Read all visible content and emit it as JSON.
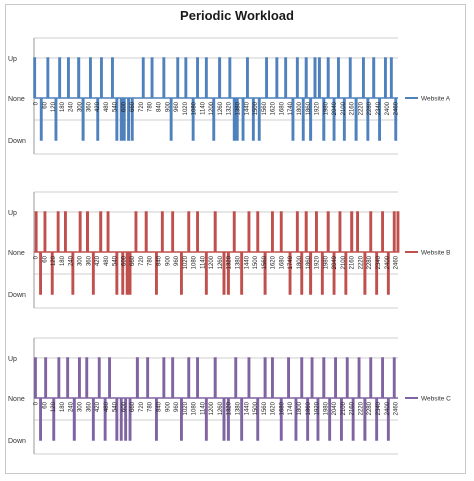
{
  "chart_data": {
    "type": "line",
    "title": "Periodic Workload",
    "y_levels": {
      "1": "Up",
      "0": "None",
      "-1": "Down"
    },
    "ylim": [
      -1,
      1
    ],
    "xlim": [
      0,
      2480
    ],
    "x_tick_labels": [
      "0",
      "60",
      "120",
      "180",
      "240",
      "300",
      "360",
      "420",
      "480",
      "540",
      "600",
      "660",
      "720",
      "780",
      "840",
      "900",
      "960",
      "1020",
      "1080",
      "1140",
      "1200",
      "1260",
      "1320",
      "1380",
      "1440",
      "1500",
      "1560",
      "1620",
      "1680",
      "1740",
      "1800",
      "1860",
      "1920",
      "1980",
      "2040",
      "2100",
      "2160",
      "2220",
      "2280",
      "2340",
      "2400",
      "2460"
    ],
    "grid": true,
    "legend_position": "right",
    "panels": [
      {
        "series_name": "Website A",
        "color": "#4f81bd",
        "events": [
          [
            0,
            1
          ],
          [
            45,
            -1
          ],
          [
            90,
            1
          ],
          [
            145,
            -1
          ],
          [
            170,
            1
          ],
          [
            230,
            1
          ],
          [
            300,
            1
          ],
          [
            330,
            -1
          ],
          [
            380,
            1
          ],
          [
            430,
            -1
          ],
          [
            455,
            1
          ],
          [
            530,
            1
          ],
          [
            560,
            -1
          ],
          [
            590,
            -1
          ],
          [
            610,
            -1
          ],
          [
            640,
            -1
          ],
          [
            665,
            -1
          ],
          [
            740,
            1
          ],
          [
            800,
            1
          ],
          [
            880,
            1
          ],
          [
            930,
            -1
          ],
          [
            975,
            1
          ],
          [
            1030,
            1
          ],
          [
            1080,
            -1
          ],
          [
            1110,
            1
          ],
          [
            1170,
            1
          ],
          [
            1220,
            -1
          ],
          [
            1260,
            1
          ],
          [
            1330,
            1
          ],
          [
            1360,
            -1
          ],
          [
            1380,
            -1
          ],
          [
            1420,
            -1
          ],
          [
            1450,
            1
          ],
          [
            1490,
            -1
          ],
          [
            1530,
            -1
          ],
          [
            1580,
            1
          ],
          [
            1650,
            1
          ],
          [
            1710,
            1
          ],
          [
            1760,
            -1
          ],
          [
            1790,
            1
          ],
          [
            1830,
            -1
          ],
          [
            1850,
            1
          ],
          [
            1880,
            -1
          ],
          [
            1910,
            1
          ],
          [
            1940,
            1
          ],
          [
            1970,
            -1
          ],
          [
            2000,
            1
          ],
          [
            2040,
            -1
          ],
          [
            2070,
            1
          ],
          [
            2110,
            -1
          ],
          [
            2150,
            1
          ],
          [
            2190,
            -1
          ],
          [
            2240,
            1
          ],
          [
            2270,
            -1
          ],
          [
            2310,
            1
          ],
          [
            2350,
            -1
          ],
          [
            2390,
            1
          ],
          [
            2430,
            1
          ],
          [
            2460,
            -1
          ]
        ]
      },
      {
        "series_name": "Website B",
        "color": "#c0504d",
        "events": [
          [
            10,
            1
          ],
          [
            40,
            -1
          ],
          [
            70,
            1
          ],
          [
            120,
            -1
          ],
          [
            160,
            1
          ],
          [
            210,
            1
          ],
          [
            260,
            -1
          ],
          [
            310,
            1
          ],
          [
            360,
            1
          ],
          [
            400,
            -1
          ],
          [
            450,
            1
          ],
          [
            500,
            1
          ],
          [
            560,
            -1
          ],
          [
            600,
            -1
          ],
          [
            630,
            -1
          ],
          [
            650,
            -1
          ],
          [
            690,
            1
          ],
          [
            760,
            1
          ],
          [
            830,
            -1
          ],
          [
            870,
            1
          ],
          [
            940,
            1
          ],
          [
            1000,
            -1
          ],
          [
            1050,
            1
          ],
          [
            1110,
            1
          ],
          [
            1170,
            -1
          ],
          [
            1230,
            1
          ],
          [
            1290,
            -1
          ],
          [
            1320,
            -1
          ],
          [
            1360,
            1
          ],
          [
            1410,
            -1
          ],
          [
            1460,
            1
          ],
          [
            1520,
            1
          ],
          [
            1570,
            -1
          ],
          [
            1620,
            1
          ],
          [
            1680,
            1
          ],
          [
            1740,
            -1
          ],
          [
            1790,
            1
          ],
          [
            1820,
            -1
          ],
          [
            1850,
            1
          ],
          [
            1880,
            -1
          ],
          [
            1920,
            1
          ],
          [
            1960,
            -1
          ],
          [
            2000,
            1
          ],
          [
            2040,
            -1
          ],
          [
            2080,
            1
          ],
          [
            2120,
            -1
          ],
          [
            2160,
            1
          ],
          [
            2200,
            1
          ],
          [
            2250,
            -1
          ],
          [
            2290,
            1
          ],
          [
            2330,
            -1
          ],
          [
            2370,
            1
          ],
          [
            2410,
            -1
          ],
          [
            2450,
            1
          ],
          [
            2475,
            1
          ]
        ]
      },
      {
        "series_name": "Website C",
        "color": "#8064a2",
        "events": [
          [
            5,
            1
          ],
          [
            40,
            -1
          ],
          [
            75,
            1
          ],
          [
            130,
            -1
          ],
          [
            165,
            1
          ],
          [
            225,
            1
          ],
          [
            270,
            -1
          ],
          [
            305,
            1
          ],
          [
            355,
            1
          ],
          [
            400,
            -1
          ],
          [
            440,
            1
          ],
          [
            480,
            -1
          ],
          [
            510,
            1
          ],
          [
            560,
            -1
          ],
          [
            590,
            -1
          ],
          [
            620,
            -1
          ],
          [
            650,
            -1
          ],
          [
            700,
            1
          ],
          [
            770,
            1
          ],
          [
            830,
            -1
          ],
          [
            880,
            1
          ],
          [
            940,
            1
          ],
          [
            1000,
            -1
          ],
          [
            1050,
            1
          ],
          [
            1110,
            1
          ],
          [
            1170,
            -1
          ],
          [
            1230,
            1
          ],
          [
            1290,
            -1
          ],
          [
            1320,
            -1
          ],
          [
            1370,
            1
          ],
          [
            1410,
            -1
          ],
          [
            1460,
            1
          ],
          [
            1520,
            -1
          ],
          [
            1570,
            1
          ],
          [
            1620,
            1
          ],
          [
            1680,
            -1
          ],
          [
            1730,
            1
          ],
          [
            1780,
            -1
          ],
          [
            1820,
            1
          ],
          [
            1860,
            -1
          ],
          [
            1890,
            1
          ],
          [
            1930,
            -1
          ],
          [
            1970,
            1
          ],
          [
            2010,
            -1
          ],
          [
            2050,
            1
          ],
          [
            2090,
            -1
          ],
          [
            2130,
            1
          ],
          [
            2170,
            -1
          ],
          [
            2210,
            1
          ],
          [
            2250,
            -1
          ],
          [
            2290,
            1
          ],
          [
            2330,
            -1
          ],
          [
            2370,
            1
          ],
          [
            2410,
            -1
          ],
          [
            2450,
            1
          ]
        ]
      }
    ]
  }
}
